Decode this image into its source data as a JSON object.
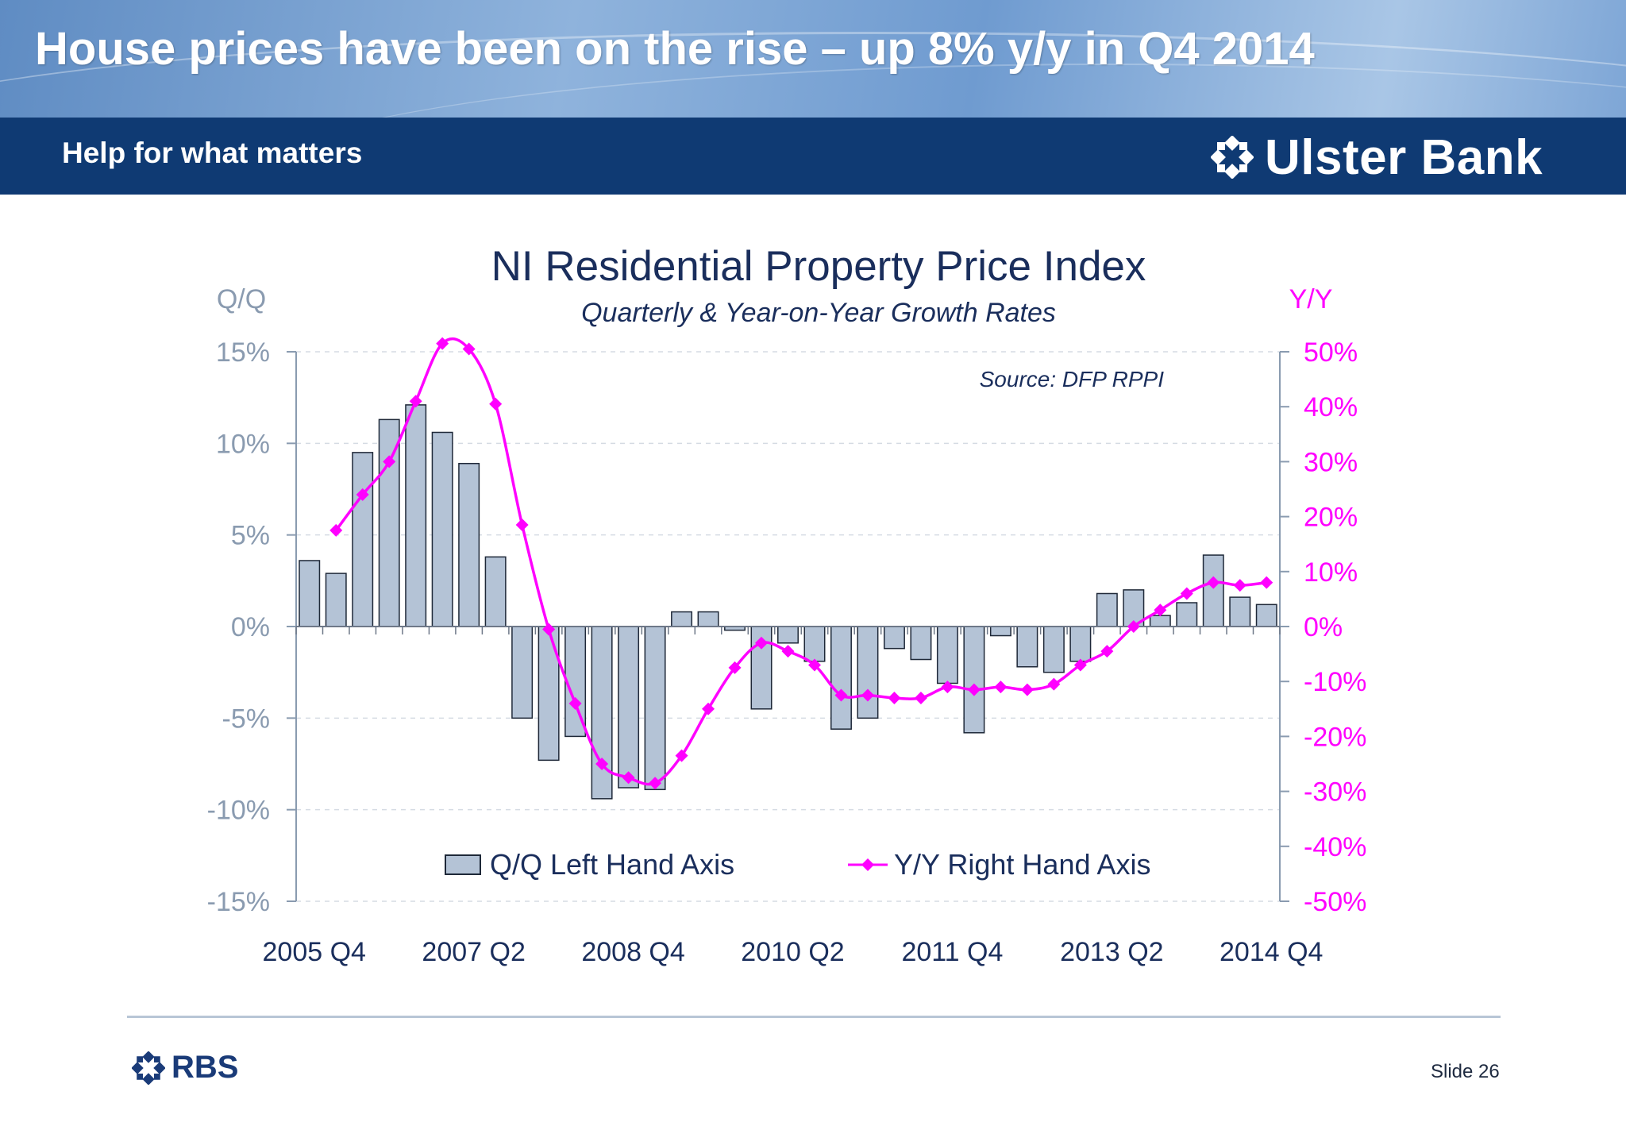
{
  "header": {
    "title": "House prices have been on the rise – up 8% y/y in Q4 2014",
    "tagline": "Help for what matters",
    "brand": "Ulster Bank",
    "brand_icon": "rbs-daisy-icon"
  },
  "footer": {
    "brand": "RBS",
    "slide": "Slide 26"
  },
  "colors": {
    "header_band": "#0f3a73",
    "bar_fill": "#b4c3d6",
    "bar_stroke": "#1e2838",
    "line": "#ff00ff",
    "left_axis_text": "#8a9bb0",
    "title_text": "#1a2e5c"
  },
  "chart_data": {
    "type": "bar+line",
    "title": "NI Residential Property Price Index",
    "subtitle": "Quarterly & Year-on-Year Growth Rates",
    "source": "Source: DFP RPPI",
    "left_axis_label": "Q/Q",
    "right_axis_label": "Y/Y",
    "left_ylim": [
      -15,
      15
    ],
    "right_ylim": [
      -50,
      50
    ],
    "left_ticks": [
      "15%",
      "10%",
      "5%",
      "0%",
      "-5%",
      "-10%",
      "-15%"
    ],
    "right_ticks": [
      "50%",
      "40%",
      "30%",
      "20%",
      "10%",
      "0%",
      "-10%",
      "-20%",
      "-30%",
      "-40%",
      "-50%"
    ],
    "x_tick_labels": [
      "2005 Q4",
      "2007 Q2",
      "2008 Q4",
      "2010 Q2",
      "2011 Q4",
      "2013 Q2",
      "2014 Q4"
    ],
    "categories": [
      "2005 Q4",
      "2006 Q1",
      "2006 Q2",
      "2006 Q3",
      "2006 Q4",
      "2007 Q1",
      "2007 Q2",
      "2007 Q3",
      "2007 Q4",
      "2008 Q1",
      "2008 Q2",
      "2008 Q3",
      "2008 Q4",
      "2009 Q1",
      "2009 Q2",
      "2009 Q3",
      "2009 Q4",
      "2010 Q1",
      "2010 Q2",
      "2010 Q3",
      "2010 Q4",
      "2011 Q1",
      "2011 Q2",
      "2011 Q3",
      "2011 Q4",
      "2012 Q1",
      "2012 Q2",
      "2012 Q3",
      "2012 Q4",
      "2013 Q1",
      "2013 Q2",
      "2013 Q3",
      "2013 Q4",
      "2014 Q1",
      "2014 Q2",
      "2014 Q3",
      "2014 Q4"
    ],
    "series": [
      {
        "name": "Q/Q Left Hand Axis",
        "type": "bar",
        "axis": "left",
        "values": [
          3.6,
          2.9,
          9.5,
          11.3,
          12.1,
          10.6,
          8.9,
          3.8,
          -5.0,
          -7.3,
          -6.0,
          -9.4,
          -8.8,
          -8.9,
          0.8,
          0.8,
          -0.2,
          -4.5,
          -0.9,
          -1.9,
          -5.6,
          -5.0,
          -1.2,
          -1.8,
          -3.1,
          -5.8,
          -0.5,
          -2.2,
          -2.5,
          -1.9,
          1.8,
          2.0,
          0.6,
          1.3,
          3.9,
          1.6,
          1.2
        ]
      },
      {
        "name": "Y/Y Right Hand Axis",
        "type": "line",
        "axis": "right",
        "values": [
          null,
          17.5,
          24,
          30,
          41,
          51.5,
          50.5,
          40.5,
          18.5,
          -0.5,
          -14,
          -25,
          -27.5,
          -28.5,
          -23.5,
          -15,
          -7.5,
          -3,
          -4.5,
          -7,
          -12.5,
          -12.5,
          -13,
          -13,
          -11,
          -11.5,
          -11,
          -11.5,
          -10.5,
          -7,
          -4.5,
          0,
          3,
          6,
          8,
          7.5,
          8
        ]
      }
    ],
    "legend": {
      "placement": "bottom-inside",
      "bar_label": "Q/Q Left Hand Axis",
      "line_label": "Y/Y Right Hand Axis"
    },
    "grid": true
  }
}
